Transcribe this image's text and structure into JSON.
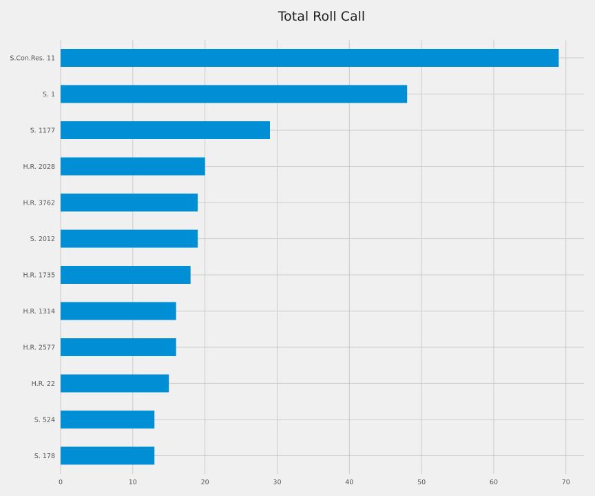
{
  "chart_data": {
    "type": "bar",
    "orientation": "horizontal",
    "title": "Total Roll Call",
    "xlabel": "",
    "ylabel": "",
    "categories": [
      "S.Con.Res. 11",
      "S. 1",
      "S. 1177",
      "H.R. 2028",
      "H.R. 3762",
      "S. 2012",
      "H.R. 1735",
      "H.R. 1314",
      "H.R. 2577",
      "H.R. 22",
      "S. 524",
      "S. 178"
    ],
    "values": [
      69,
      48,
      29,
      20,
      19,
      19,
      18,
      16,
      16,
      15,
      13,
      13
    ],
    "xlim": [
      0,
      72.5
    ],
    "xticks": [
      0,
      10,
      20,
      30,
      40,
      50,
      60,
      70
    ],
    "xtick_labels": [
      "0",
      "10",
      "20",
      "30",
      "40",
      "50",
      "60",
      "70"
    ],
    "grid": true,
    "legend": "none",
    "colors": {
      "bar": "#008fd5",
      "background": "#f0f0f0",
      "grid": "#cbcbcb"
    }
  }
}
